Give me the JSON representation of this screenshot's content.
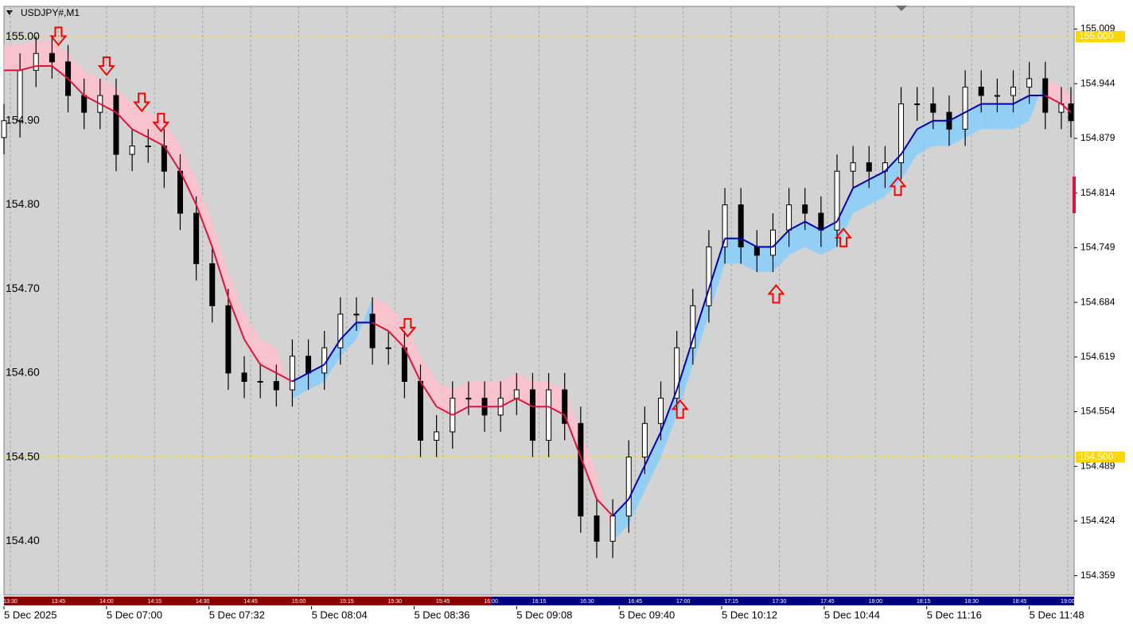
{
  "chart_data": {
    "type": "candlestick",
    "title": "USDJPY#,M1",
    "x": [
      0,
      5,
      10,
      15,
      20,
      25,
      30,
      35,
      40,
      45,
      50,
      55,
      60,
      65,
      70,
      75,
      80,
      85,
      90,
      95,
      100,
      105,
      110,
      115,
      120,
      125,
      130,
      135,
      140,
      145,
      150,
      155,
      160,
      165,
      170,
      175,
      180,
      185,
      190,
      195,
      200,
      205,
      210,
      215,
      220,
      225,
      230,
      235,
      240,
      245,
      250,
      255,
      260,
      265,
      270,
      275,
      280,
      285,
      290,
      295,
      300,
      305,
      310,
      315,
      320,
      325,
      330,
      333
    ],
    "open": [
      154.88,
      154.9,
      154.96,
      154.98,
      154.97,
      154.93,
      154.91,
      154.93,
      154.86,
      154.87,
      154.87,
      154.84,
      154.79,
      154.73,
      154.68,
      154.6,
      154.59,
      154.59,
      154.58,
      154.62,
      154.6,
      154.63,
      154.67,
      154.67,
      154.63,
      154.63,
      154.59,
      154.52,
      154.53,
      154.57,
      154.57,
      154.55,
      154.57,
      154.58,
      154.52,
      154.58,
      154.54,
      154.43,
      154.4,
      154.43,
      154.5,
      154.54,
      154.57,
      154.63,
      154.68,
      154.75,
      154.8,
      154.75,
      154.74,
      154.77,
      154.8,
      154.79,
      154.77,
      154.84,
      154.85,
      154.84,
      154.85,
      154.92,
      154.92,
      154.91,
      154.89,
      154.94,
      154.93,
      154.93,
      154.94,
      154.95,
      154.91,
      154.92
    ],
    "high": [
      154.92,
      154.98,
      155.0,
      155.0,
      154.99,
      154.95,
      154.95,
      154.95,
      154.89,
      154.89,
      154.89,
      154.86,
      154.81,
      154.75,
      154.7,
      154.62,
      154.61,
      154.61,
      154.64,
      154.64,
      154.65,
      154.69,
      154.69,
      154.69,
      154.65,
      154.65,
      154.61,
      154.55,
      154.59,
      154.59,
      154.59,
      154.59,
      154.6,
      154.6,
      154.6,
      154.6,
      154.56,
      154.45,
      154.45,
      154.52,
      154.56,
      154.59,
      154.65,
      154.7,
      154.77,
      154.82,
      154.82,
      154.77,
      154.79,
      154.82,
      154.82,
      154.81,
      154.86,
      154.87,
      154.87,
      154.87,
      154.94,
      154.94,
      154.94,
      154.93,
      154.96,
      154.96,
      154.95,
      154.96,
      154.97,
      154.97,
      154.94,
      154.94
    ],
    "low": [
      154.86,
      154.88,
      154.94,
      154.95,
      154.91,
      154.89,
      154.89,
      154.84,
      154.84,
      154.85,
      154.82,
      154.77,
      154.71,
      154.66,
      154.58,
      154.57,
      154.57,
      154.56,
      154.56,
      154.58,
      154.58,
      154.61,
      154.65,
      154.61,
      154.61,
      154.57,
      154.5,
      154.5,
      154.51,
      154.55,
      154.53,
      154.53,
      154.55,
      154.5,
      154.5,
      154.52,
      154.41,
      154.38,
      154.38,
      154.41,
      154.48,
      154.52,
      154.55,
      154.61,
      154.66,
      154.73,
      154.73,
      154.72,
      154.72,
      154.75,
      154.77,
      154.75,
      154.75,
      154.82,
      154.82,
      154.82,
      154.83,
      154.9,
      154.89,
      154.87,
      154.87,
      154.91,
      154.91,
      154.91,
      154.92,
      154.89,
      154.89,
      154.88
    ],
    "close": [
      154.9,
      154.96,
      154.98,
      154.97,
      154.93,
      154.91,
      154.93,
      154.86,
      154.87,
      154.87,
      154.84,
      154.79,
      154.73,
      154.68,
      154.6,
      154.59,
      154.59,
      154.58,
      154.62,
      154.6,
      154.63,
      154.67,
      154.67,
      154.63,
      154.63,
      154.59,
      154.52,
      154.53,
      154.57,
      154.57,
      154.55,
      154.57,
      154.58,
      154.52,
      154.58,
      154.54,
      154.43,
      154.4,
      154.43,
      154.5,
      154.54,
      154.57,
      154.63,
      154.68,
      154.75,
      154.8,
      154.75,
      154.74,
      154.77,
      154.8,
      154.79,
      154.77,
      154.84,
      154.85,
      154.84,
      154.85,
      154.92,
      154.92,
      154.91,
      154.89,
      154.94,
      154.93,
      154.93,
      154.94,
      154.95,
      154.91,
      154.92,
      154.9
    ],
    "ma": [
      154.96,
      154.96,
      154.965,
      154.965,
      154.95,
      154.93,
      154.92,
      154.91,
      154.89,
      154.88,
      154.87,
      154.84,
      154.8,
      154.75,
      154.69,
      154.64,
      154.61,
      154.6,
      154.59,
      154.6,
      154.61,
      154.64,
      154.66,
      154.66,
      154.65,
      154.63,
      154.59,
      154.56,
      154.55,
      154.56,
      154.56,
      154.56,
      154.57,
      154.56,
      154.56,
      154.55,
      154.5,
      154.45,
      154.43,
      154.45,
      154.49,
      154.53,
      154.58,
      154.64,
      154.7,
      154.76,
      154.76,
      154.75,
      154.75,
      154.77,
      154.78,
      154.77,
      154.78,
      154.82,
      154.83,
      154.84,
      154.86,
      154.89,
      154.9,
      154.9,
      154.91,
      154.92,
      154.92,
      154.92,
      154.93,
      154.93,
      154.92,
      154.91
    ],
    "cloud": [
      154.99,
      154.99,
      154.995,
      154.995,
      154.98,
      154.96,
      154.95,
      154.94,
      154.92,
      154.91,
      154.9,
      154.87,
      154.83,
      154.78,
      154.72,
      154.67,
      154.64,
      154.63,
      154.57,
      154.58,
      154.59,
      154.62,
      154.64,
      154.69,
      154.68,
      154.66,
      154.62,
      154.59,
      154.58,
      154.59,
      154.59,
      154.59,
      154.6,
      154.59,
      154.59,
      154.58,
      154.53,
      154.48,
      154.4,
      154.42,
      154.46,
      154.5,
      154.55,
      154.61,
      154.67,
      154.73,
      154.73,
      154.72,
      154.72,
      154.74,
      154.75,
      154.74,
      154.75,
      154.79,
      154.8,
      154.81,
      154.83,
      154.86,
      154.87,
      154.87,
      154.88,
      154.89,
      154.89,
      154.89,
      154.9,
      154.95,
      154.94,
      154.93
    ],
    "sell_signals": {
      "x": [
        17,
        32,
        43,
        49,
        126
      ],
      "y": [
        155.0005,
        154.965,
        154.922,
        154.898,
        154.654
      ]
    },
    "buy_signals": {
      "x": [
        211,
        241,
        262,
        279
      ],
      "y": [
        154.557,
        154.694,
        154.761,
        154.822
      ]
    },
    "xlim": [
      0,
      334
    ],
    "ylim": [
      154.336,
      155.036
    ],
    "yticks": [
      155.009,
      154.944,
      154.879,
      154.814,
      154.749,
      154.684,
      154.619,
      154.554,
      154.489,
      154.424,
      154.359
    ],
    "yticks_left": [
      {
        "value": 155,
        "label": "155.00"
      },
      {
        "value": 154.9,
        "label": "154.90"
      },
      {
        "value": 154.8,
        "label": "154.80"
      },
      {
        "value": 154.7,
        "label": "154.70"
      },
      {
        "value": 154.6,
        "label": "154.60"
      },
      {
        "value": 154.5,
        "label": "154.50"
      },
      {
        "value": 154.4,
        "label": "154.40"
      }
    ],
    "price_lines": [
      {
        "value": 155,
        "label": "155.000"
      },
      {
        "value": 154.5,
        "label": "154.500"
      }
    ],
    "xticks": [
      {
        "value": 0,
        "label": "5 Dec 2025"
      },
      {
        "value": 32,
        "label": "5 Dec 07:00"
      },
      {
        "value": 64,
        "label": "5 Dec 07:32"
      },
      {
        "value": 96,
        "label": "5 Dec 08:04"
      },
      {
        "value": 128,
        "label": "5 Dec 08:36"
      },
      {
        "value": 160,
        "label": "5 Dec 09:08"
      },
      {
        "value": 192,
        "label": "5 Dec 09:40"
      },
      {
        "value": 224,
        "label": "5 Dec 10:12"
      },
      {
        "value": 256,
        "label": "5 Dec 10:44"
      },
      {
        "value": 288,
        "label": "5 Dec 11:16"
      },
      {
        "value": 320,
        "label": "5 Dec 11:48"
      }
    ],
    "session_ticks": [
      {
        "value": 2,
        "label": "13:30"
      },
      {
        "value": 17,
        "label": "13:45"
      },
      {
        "value": 32,
        "label": "14:00"
      },
      {
        "value": 47,
        "label": "14:15"
      },
      {
        "value": 62,
        "label": "14:30"
      },
      {
        "value": 77,
        "label": "14:45"
      },
      {
        "value": 92,
        "label": "15:00"
      },
      {
        "value": 107,
        "label": "15:15"
      },
      {
        "value": 122,
        "label": "15:30"
      },
      {
        "value": 137,
        "label": "15:45"
      },
      {
        "value": 152,
        "label": "16:00"
      },
      {
        "value": 167,
        "label": "16:15"
      },
      {
        "value": 182,
        "label": "16:30"
      },
      {
        "value": 197,
        "label": "16:45"
      },
      {
        "value": 212,
        "label": "17:00"
      },
      {
        "value": 227,
        "label": "17:15"
      },
      {
        "value": 242,
        "label": "17:30"
      },
      {
        "value": 257,
        "label": "17:45"
      },
      {
        "value": 272,
        "label": "18:00"
      },
      {
        "value": 287,
        "label": "18:15"
      },
      {
        "value": 302,
        "label": "18:30"
      },
      {
        "value": 317,
        "label": "18:45"
      },
      {
        "value": 332,
        "label": "19:00"
      }
    ],
    "session_boundary": 152,
    "session_colors": [
      "#8b0000",
      "#000080"
    ],
    "colors": {
      "background": "#d3d3d3",
      "candle": "#000000",
      "bull_body": "#ffffff",
      "down_line": "#dc143c",
      "up_line": "#0000b0",
      "down_cloud": "#ffc0cb",
      "up_cloud": "#87cefa",
      "signal": "#ff0000",
      "price_line": "#ffd700"
    },
    "grid": true
  }
}
